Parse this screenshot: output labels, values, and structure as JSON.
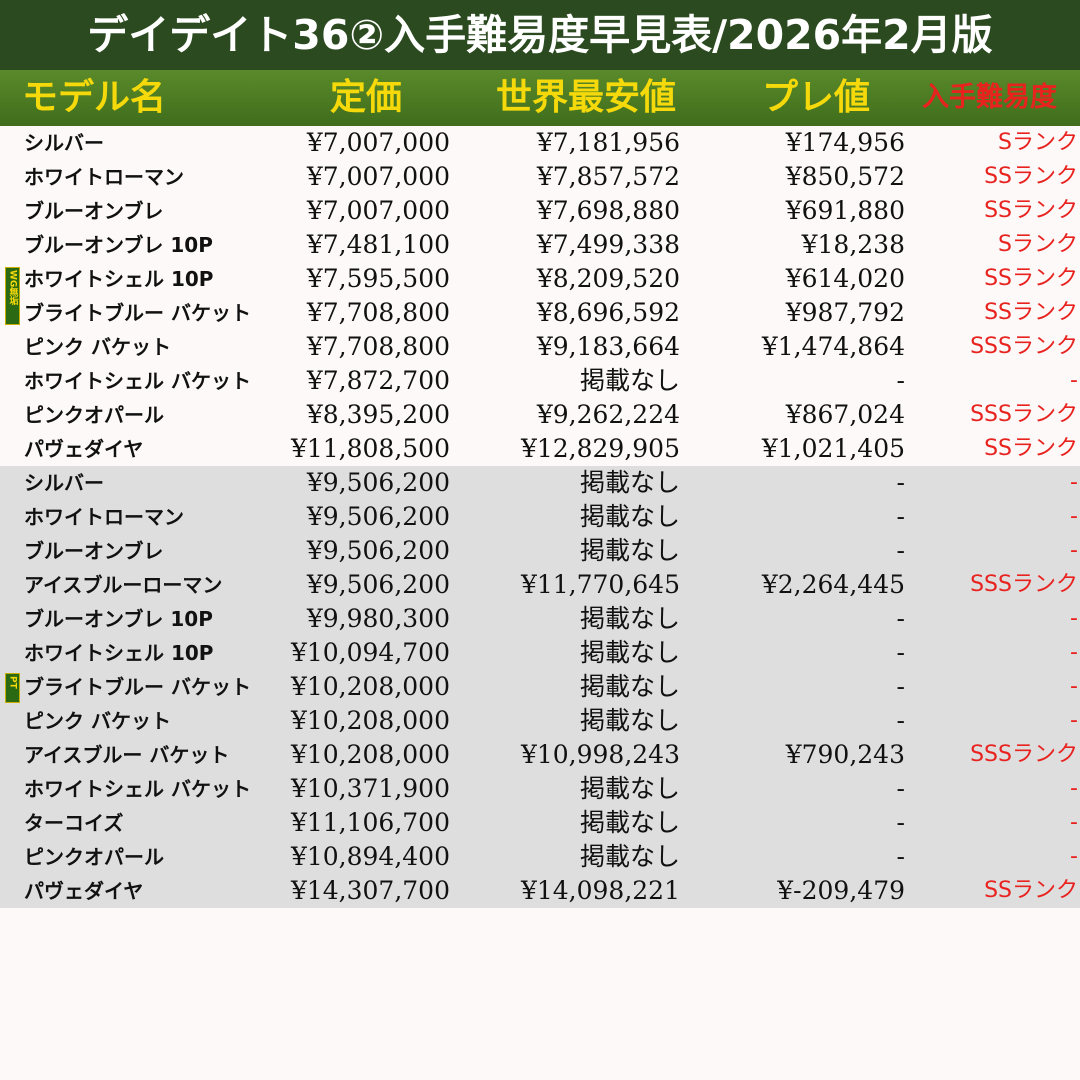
{
  "title": "デイデイト36②入手難易度早見表/2026年2月版",
  "headers": {
    "model": "モデル名",
    "retail_price": "定価",
    "lowest_price": "世界最安値",
    "premium": "プレ値",
    "difficulty": "入手難易度"
  },
  "badges": {
    "wg": "WG無垢",
    "pt": "PT"
  },
  "groups": [
    {
      "badge": "WG無垢",
      "rows": [
        {
          "model": "シルバー",
          "price": "¥7,007,000",
          "lowest": "¥7,181,956",
          "premium": "¥174,956",
          "difficulty": "Sランク"
        },
        {
          "model": "ホワイトローマン",
          "price": "¥7,007,000",
          "lowest": "¥7,857,572",
          "premium": "¥850,572",
          "difficulty": "SSランク"
        },
        {
          "model": "ブルーオンブレ",
          "price": "¥7,007,000",
          "lowest": "¥7,698,880",
          "premium": "¥691,880",
          "difficulty": "SSランク"
        },
        {
          "model": "ブルーオンブレ 10P",
          "price": "¥7,481,100",
          "lowest": "¥7,499,338",
          "premium": "¥18,238",
          "difficulty": "Sランク"
        },
        {
          "model": "ホワイトシェル 10P",
          "price": "¥7,595,500",
          "lowest": "¥8,209,520",
          "premium": "¥614,020",
          "difficulty": "SSランク"
        },
        {
          "model": "ブライトブルー バケット",
          "price": "¥7,708,800",
          "lowest": "¥8,696,592",
          "premium": "¥987,792",
          "difficulty": "SSランク"
        },
        {
          "model": "ピンク バケット",
          "price": "¥7,708,800",
          "lowest": "¥9,183,664",
          "premium": "¥1,474,864",
          "difficulty": "SSSランク"
        },
        {
          "model": "ホワイトシェル バケット",
          "price": "¥7,872,700",
          "lowest": "掲載なし",
          "premium": "-",
          "difficulty": "-"
        },
        {
          "model": "ピンクオパール",
          "price": "¥8,395,200",
          "lowest": "¥9,262,224",
          "premium": "¥867,024",
          "difficulty": "SSSランク"
        },
        {
          "model": "パヴェダイヤ",
          "price": "¥11,808,500",
          "lowest": "¥12,829,905",
          "premium": "¥1,021,405",
          "difficulty": "SSランク"
        }
      ]
    },
    {
      "badge": "PT",
      "rows": [
        {
          "model": "シルバー",
          "price": "¥9,506,200",
          "lowest": "掲載なし",
          "premium": "-",
          "difficulty": "-"
        },
        {
          "model": "ホワイトローマン",
          "price": "¥9,506,200",
          "lowest": "掲載なし",
          "premium": "-",
          "difficulty": "-"
        },
        {
          "model": "ブルーオンブレ",
          "price": "¥9,506,200",
          "lowest": "掲載なし",
          "premium": "-",
          "difficulty": "-"
        },
        {
          "model": "アイスブルーローマン",
          "price": "¥9,506,200",
          "lowest": "¥11,770,645",
          "premium": "¥2,264,445",
          "difficulty": "SSSランク"
        },
        {
          "model": "ブルーオンブレ 10P",
          "price": "¥9,980,300",
          "lowest": "掲載なし",
          "premium": "-",
          "difficulty": "-"
        },
        {
          "model": "ホワイトシェル 10P",
          "price": "¥10,094,700",
          "lowest": "掲載なし",
          "premium": "-",
          "difficulty": "-"
        },
        {
          "model": "ブライトブルー バケット",
          "price": "¥10,208,000",
          "lowest": "掲載なし",
          "premium": "-",
          "difficulty": "-"
        },
        {
          "model": "ピンク  バケット",
          "price": "¥10,208,000",
          "lowest": "掲載なし",
          "premium": "-",
          "difficulty": "-"
        },
        {
          "model": "アイスブルー バケット",
          "price": "¥10,208,000",
          "lowest": "¥10,998,243",
          "premium": "¥790,243",
          "difficulty": "SSSランク"
        },
        {
          "model": "ホワイトシェル バケット",
          "price": "¥10,371,900",
          "lowest": "掲載なし",
          "premium": "-",
          "difficulty": "-"
        },
        {
          "model": "ターコイズ",
          "price": "¥11,106,700",
          "lowest": "掲載なし",
          "premium": "-",
          "difficulty": "-"
        },
        {
          "model": "ピンクオパール",
          "price": "¥10,894,400",
          "lowest": "掲載なし",
          "premium": "-",
          "difficulty": "-"
        },
        {
          "model": "パヴェダイヤ",
          "price": "¥14,307,700",
          "lowest": "¥14,098,221",
          "premium": "¥-209,479",
          "difficulty": "SSランク"
        }
      ]
    }
  ]
}
